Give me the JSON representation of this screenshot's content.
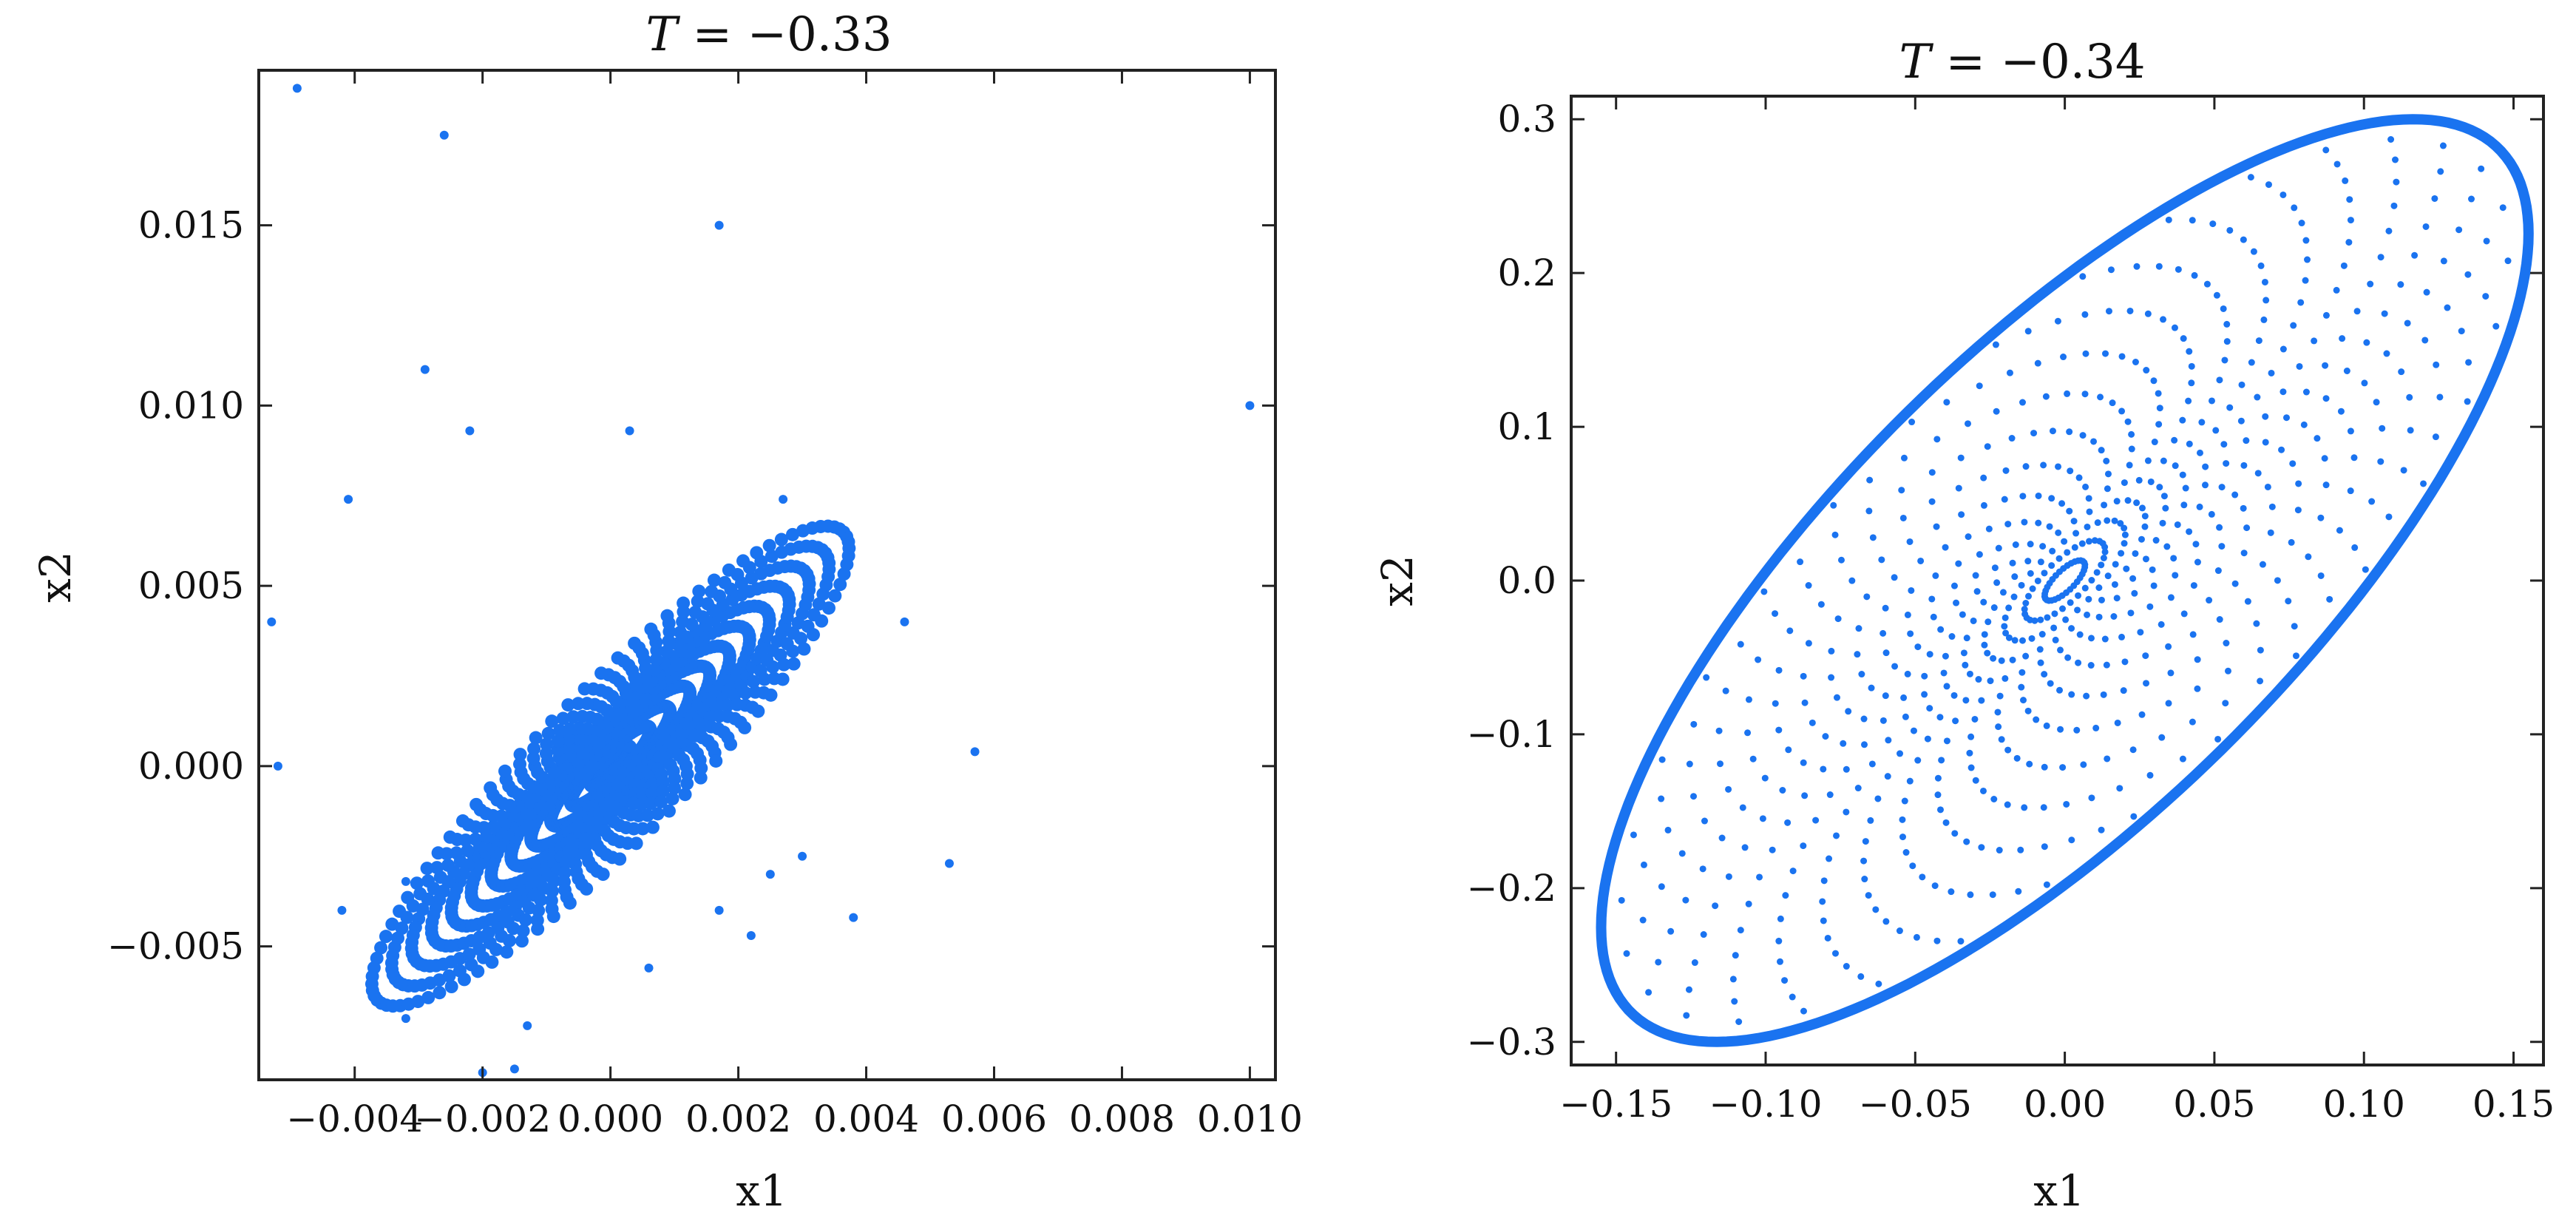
{
  "chart_data": [
    {
      "type": "scatter",
      "title_var": "T",
      "title_eq": " = −0.33",
      "xlabel": "x1",
      "ylabel": "x2",
      "xlim": [
        -0.0055,
        0.0104
      ],
      "ylim": [
        -0.0087,
        0.0193
      ],
      "xticks": [
        -0.004,
        -0.002,
        0.0,
        0.002,
        0.004,
        0.006,
        0.008,
        0.01
      ],
      "xtick_labels": [
        "−0.004",
        "−0.002",
        "0.000",
        "0.002",
        "0.004",
        "0.006",
        "0.008",
        "0.010"
      ],
      "yticks": [
        -0.005,
        0.0,
        0.005,
        0.01,
        0.015
      ],
      "ytick_labels": [
        "−0.005",
        "0.000",
        "0.005",
        "0.010",
        "0.015"
      ],
      "series": [
        {
          "name": "dense elliptical cluster",
          "shape": "filled ellipse",
          "center": [
            0.0,
            0.0
          ],
          "semi_major": 0.0075,
          "semi_minor": 0.0014,
          "angle_deg": 62,
          "points_per_ring": 90,
          "rings": 12
        },
        {
          "name": "outliers",
          "points": [
            [
              -0.0049,
              0.0188
            ],
            [
              -0.0026,
              0.0175
            ],
            [
              0.0017,
              0.015
            ],
            [
              -0.0029,
              0.011
            ],
            [
              -0.0022,
              0.0093
            ],
            [
              0.0003,
              0.0093
            ],
            [
              -0.0041,
              0.0074
            ],
            [
              0.0027,
              0.0074
            ],
            [
              0.01,
              0.01
            ],
            [
              -0.0053,
              0.004
            ],
            [
              0.0046,
              0.004
            ],
            [
              -0.0052,
              0.0
            ],
            [
              0.0057,
              0.0004
            ],
            [
              0.0053,
              -0.0027
            ],
            [
              0.0038,
              -0.0042
            ],
            [
              -0.0042,
              -0.004
            ],
            [
              0.0006,
              -0.0056
            ],
            [
              -0.0032,
              -0.007
            ],
            [
              -0.0013,
              -0.0072
            ],
            [
              -0.002,
              -0.0085
            ],
            [
              -0.0015,
              -0.0084
            ],
            [
              0.0025,
              -0.003
            ],
            [
              0.003,
              -0.0025
            ],
            [
              -0.0032,
              -0.0032
            ],
            [
              0.0017,
              -0.004
            ],
            [
              0.0022,
              -0.0047
            ]
          ]
        }
      ]
    },
    {
      "type": "scatter",
      "title_var": "T",
      "title_eq": " = −0.34",
      "xlabel": "x1",
      "ylabel": "x2",
      "xlim": [
        -0.165,
        0.16
      ],
      "ylim": [
        -0.315,
        0.315
      ],
      "xticks": [
        -0.15,
        -0.1,
        -0.05,
        0.0,
        0.05,
        0.1,
        0.15
      ],
      "xtick_labels": [
        "−0.15",
        "−0.10",
        "−0.05",
        "0.00",
        "0.05",
        "0.10",
        "0.15"
      ],
      "yticks": [
        -0.3,
        -0.2,
        -0.1,
        0.0,
        0.1,
        0.2,
        0.3
      ],
      "ytick_labels": [
        "−0.3",
        "−0.2",
        "−0.1",
        "0.0",
        "0.1",
        "0.2",
        "0.3"
      ],
      "series": [
        {
          "name": "boundary band",
          "shape": "ellipse outline",
          "center": [
            0.0,
            0.0
          ],
          "extent_x": 0.155,
          "extent_y": 0.3
        },
        {
          "name": "spiral arms",
          "shape": "curved point arcs from center",
          "arms": 32,
          "points_per_arm": 22
        }
      ]
    }
  ]
}
